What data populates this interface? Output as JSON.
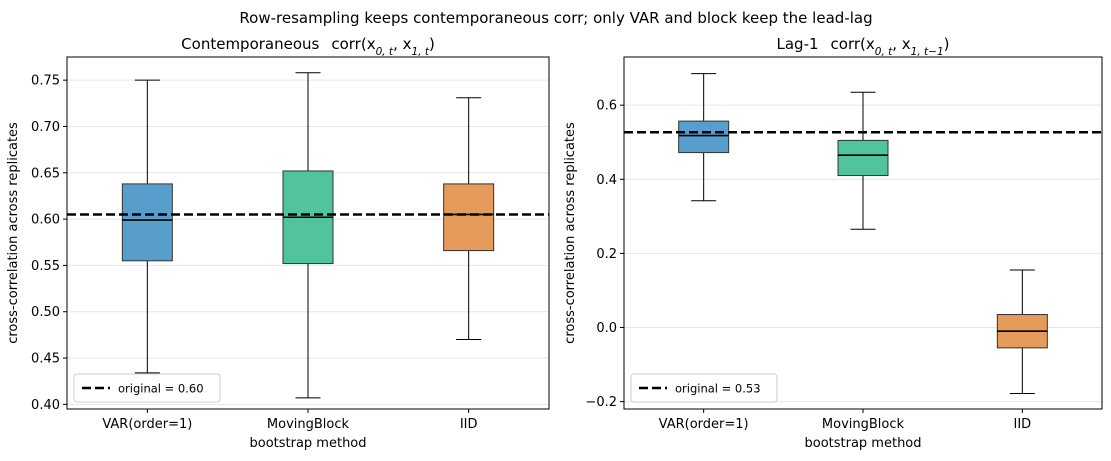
{
  "suptitle": "Row-resampling keeps contemporaneous corr; only VAR and block keep the lead-lag",
  "chart_data": [
    {
      "type": "box",
      "title_prefix": "Contemporaneous",
      "title_corr": "corr(x",
      "title_sub_a": "0, t",
      "title_mid": ", x",
      "title_sub_b": "1, t",
      "title_end": ")",
      "xlabel": "bootstrap method",
      "ylabel": "cross-correlation across replicates",
      "ylim": [
        0.395,
        0.775
      ],
      "yticks": [
        0.4,
        0.45,
        0.5,
        0.55,
        0.6,
        0.65,
        0.7,
        0.75
      ],
      "ytick_labels": [
        "0.40",
        "0.45",
        "0.50",
        "0.55",
        "0.60",
        "0.65",
        "0.70",
        "0.75"
      ],
      "grid": "horizontal",
      "legend_position": "lower-left",
      "reference_line": {
        "value": 0.605,
        "label": "original = 0.60"
      },
      "categories": [
        "VAR(order=1)",
        "MovingBlock",
        "IID"
      ],
      "boxes": [
        {
          "name": "VAR(order=1)",
          "whisker_low": 0.434,
          "q1": 0.555,
          "median": 0.599,
          "q3": 0.638,
          "whisker_high": 0.75,
          "color": "#3a8dc4"
        },
        {
          "name": "MovingBlock",
          "whisker_low": 0.407,
          "q1": 0.552,
          "median": 0.602,
          "q3": 0.652,
          "whisker_high": 0.758,
          "color": "#33b98c"
        },
        {
          "name": "IID",
          "whisker_low": 0.47,
          "q1": 0.566,
          "median": 0.605,
          "q3": 0.638,
          "whisker_high": 0.731,
          "color": "#e08a3c"
        }
      ]
    },
    {
      "type": "box",
      "title_prefix": "Lag-1",
      "title_corr": "corr(x",
      "title_sub_a": "0, t",
      "title_mid": ", x",
      "title_sub_b": "1, t−1",
      "title_end": ")",
      "xlabel": "bootstrap method",
      "ylabel": "cross-correlation across replicates",
      "ylim": [
        -0.22,
        0.73
      ],
      "yticks": [
        -0.2,
        0.0,
        0.2,
        0.4,
        0.6
      ],
      "ytick_labels": [
        "−0.2",
        "0.0",
        "0.2",
        "0.4",
        "0.6"
      ],
      "grid": "horizontal",
      "legend_position": "lower-left",
      "reference_line": {
        "value": 0.527,
        "label": "original = 0.53"
      },
      "categories": [
        "VAR(order=1)",
        "MovingBlock",
        "IID"
      ],
      "boxes": [
        {
          "name": "VAR(order=1)",
          "whisker_low": 0.342,
          "q1": 0.472,
          "median": 0.518,
          "q3": 0.557,
          "whisker_high": 0.685,
          "color": "#3a8dc4"
        },
        {
          "name": "MovingBlock",
          "whisker_low": 0.265,
          "q1": 0.41,
          "median": 0.465,
          "q3": 0.505,
          "whisker_high": 0.635,
          "color": "#33b98c"
        },
        {
          "name": "IID",
          "whisker_low": -0.178,
          "q1": -0.055,
          "median": -0.01,
          "q3": 0.035,
          "whisker_high": 0.155,
          "color": "#e08a3c"
        }
      ]
    }
  ]
}
